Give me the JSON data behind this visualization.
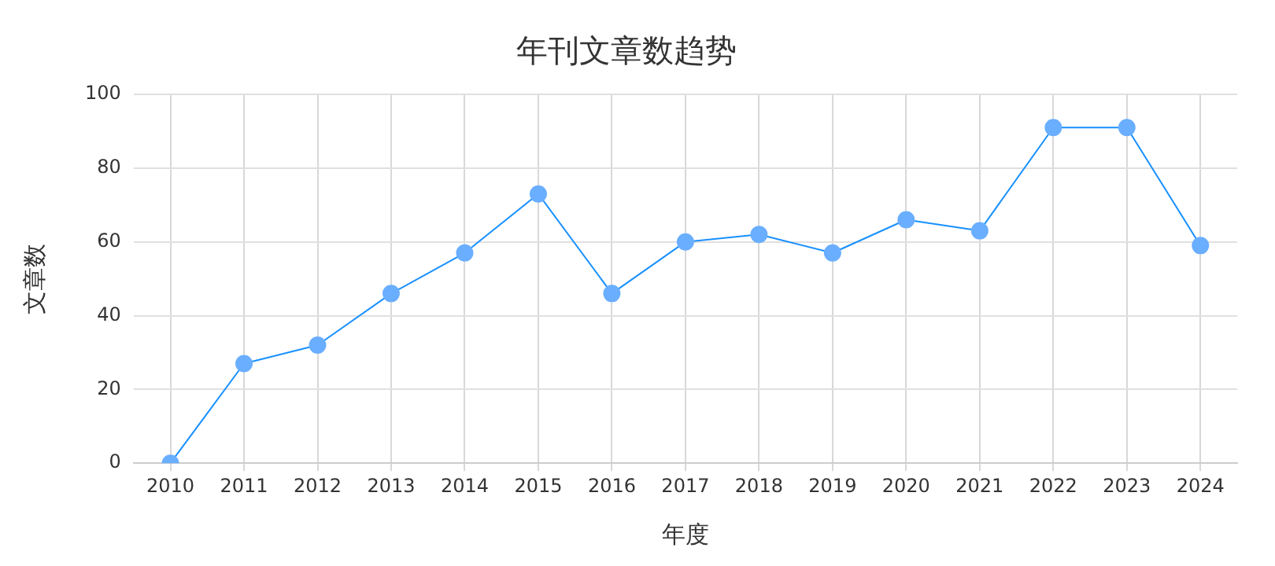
{
  "chart_data": {
    "type": "line",
    "title": "年刊文章数趋势",
    "xlabel": "年度",
    "ylabel": "文章数",
    "categories": [
      "2010",
      "2011",
      "2012",
      "2013",
      "2014",
      "2015",
      "2016",
      "2017",
      "2018",
      "2019",
      "2020",
      "2021",
      "2022",
      "2023",
      "2024"
    ],
    "series": [
      {
        "color": "#1890ff",
        "values": [
          0,
          27,
          32,
          46,
          57,
          73,
          46,
          60,
          62,
          57,
          66,
          63,
          91,
          91,
          59
        ]
      }
    ],
    "ylim": [
      0,
      100
    ],
    "yticks": [
      0,
      20,
      40,
      60,
      80,
      100
    ],
    "grid": true,
    "marker": "circle",
    "line_style": "solid",
    "legend": false
  }
}
